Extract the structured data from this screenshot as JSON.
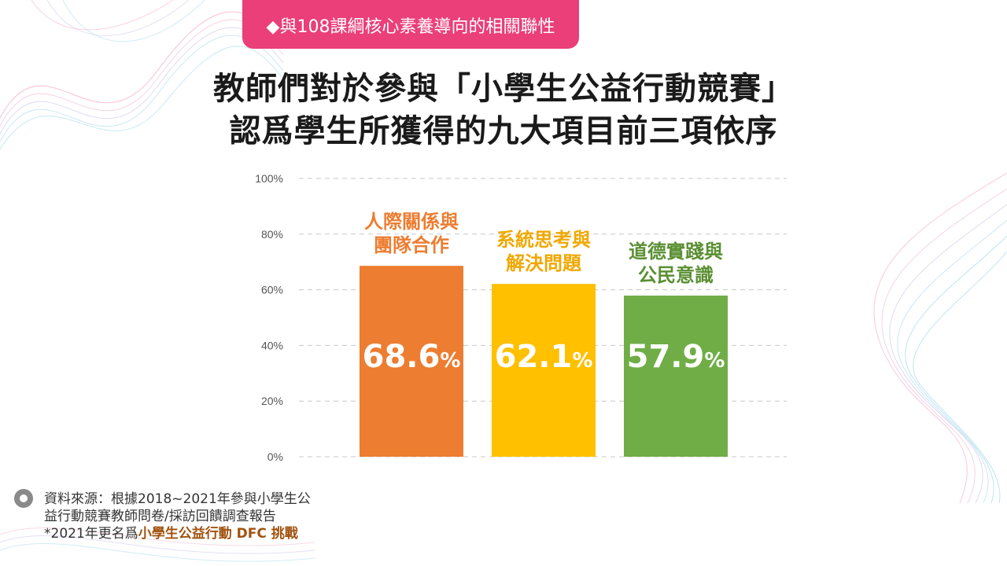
{
  "header": {
    "tag_label": "◆與108課綱核心素養導向的相關聯性",
    "title_line1": "教師們對於參與「小學生公益行動競賽」",
    "title_line2": "認爲學生所獲得的九大項目前三項依序"
  },
  "chart_data": {
    "type": "bar",
    "categories": [
      "人際關係與團隊合作",
      "系統思考與解決問題",
      "道德實踐與公民意識"
    ],
    "category_labels": [
      [
        "人際關係與",
        "團隊合作"
      ],
      [
        "系統思考與",
        "解決問題"
      ],
      [
        "道德實踐與",
        "公民意識"
      ]
    ],
    "values": [
      68.6,
      62.1,
      57.9
    ],
    "value_labels": [
      "68.6",
      "62.1",
      "57.9"
    ],
    "value_unit": "%",
    "colors": [
      "#ed7d31",
      "#ffc000",
      "#70ad47"
    ],
    "label_colors": [
      "#ed7d31",
      "#f0a800",
      "#5a8f32"
    ],
    "y_ticks": [
      "0%",
      "20%",
      "40%",
      "60%",
      "80%",
      "100%"
    ],
    "ylim": [
      0,
      100
    ],
    "grid": true,
    "legend": false,
    "title": "",
    "xlabel": "",
    "ylabel": ""
  },
  "footer": {
    "source_line1": "資料來源：根據2018~2021年參與小學生公",
    "source_line2": "益行動競賽教師問卷/採訪回饋調查報告",
    "note_prefix": "*2021年更名爲",
    "note_highlight": "小學生公益行動 DFC 挑戰"
  }
}
